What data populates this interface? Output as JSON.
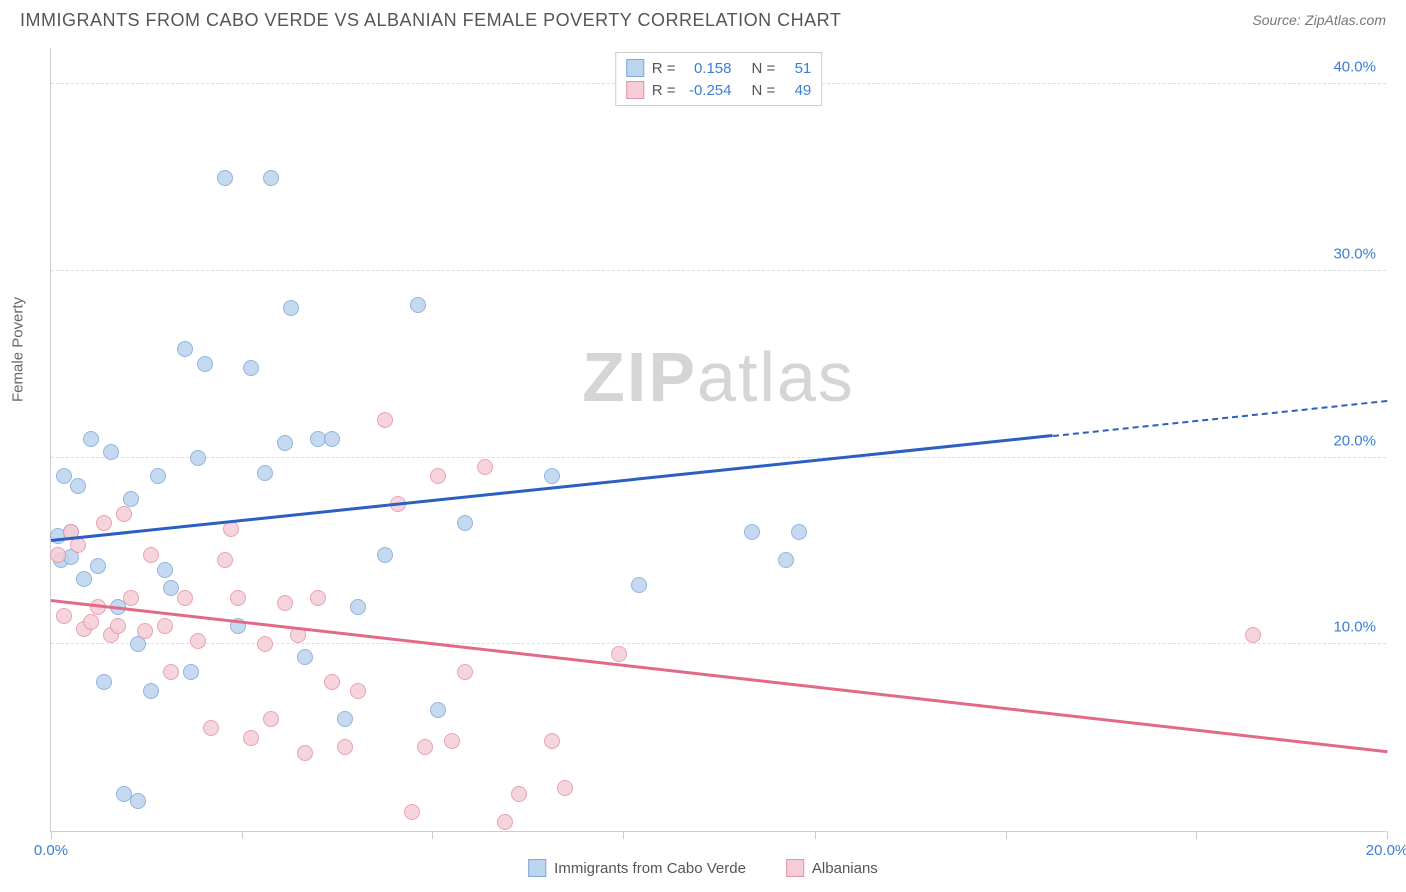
{
  "header": {
    "title": "IMMIGRANTS FROM CABO VERDE VS ALBANIAN FEMALE POVERTY CORRELATION CHART",
    "source_label": "Source:",
    "source_name": "ZipAtlas.com"
  },
  "watermark": {
    "bold": "ZIP",
    "light": "atlas"
  },
  "chart": {
    "type": "scatter",
    "xlim": [
      0,
      20
    ],
    "ylim": [
      0,
      42
    ],
    "x_ticks": [
      0,
      2.86,
      5.71,
      8.57,
      11.43,
      14.29,
      17.14,
      20
    ],
    "x_tick_labels": {
      "0": "0.0%",
      "20": "20.0%"
    },
    "y_gridlines": [
      10,
      20,
      30,
      40
    ],
    "y_tick_labels": {
      "10": "10.0%",
      "20": "20.0%",
      "30": "30.0%",
      "40": "40.0%"
    },
    "y_axis_title": "Female Poverty",
    "x_label_color": "#3b7dd8",
    "y_label_color": "#3b7dd8",
    "grid_color": "#dddddd",
    "background_color": "#ffffff",
    "marker_radius": 8,
    "series": [
      {
        "id": "cabo",
        "label": "Immigrants from Cabo Verde",
        "fill": "#bcd4ee",
        "stroke": "#7fa9d9",
        "R_label": "R =",
        "R": "0.158",
        "N_label": "N =",
        "N": "51",
        "trend": {
          "x0": 0,
          "y0": 15.5,
          "x1": 20,
          "y1": 23.0,
          "color": "#2b5fc0",
          "dash_after_x": 15
        },
        "points": [
          [
            0.1,
            15.8
          ],
          [
            0.15,
            14.5
          ],
          [
            0.2,
            19.0
          ],
          [
            0.3,
            16.0
          ],
          [
            0.3,
            14.7
          ],
          [
            0.4,
            18.5
          ],
          [
            0.5,
            13.5
          ],
          [
            0.6,
            21.0
          ],
          [
            0.7,
            14.2
          ],
          [
            0.8,
            8.0
          ],
          [
            0.9,
            20.3
          ],
          [
            1.0,
            12.0
          ],
          [
            1.1,
            2.0
          ],
          [
            1.2,
            17.8
          ],
          [
            1.3,
            10.0
          ],
          [
            1.3,
            1.6
          ],
          [
            1.5,
            7.5
          ],
          [
            1.6,
            19.0
          ],
          [
            1.7,
            14.0
          ],
          [
            1.8,
            13.0
          ],
          [
            2.0,
            25.8
          ],
          [
            2.1,
            8.5
          ],
          [
            2.2,
            20.0
          ],
          [
            2.3,
            25.0
          ],
          [
            2.6,
            35.0
          ],
          [
            2.8,
            11.0
          ],
          [
            3.0,
            24.8
          ],
          [
            3.2,
            19.2
          ],
          [
            3.3,
            35.0
          ],
          [
            3.5,
            20.8
          ],
          [
            3.6,
            28.0
          ],
          [
            3.8,
            9.3
          ],
          [
            4.0,
            21.0
          ],
          [
            4.2,
            21.0
          ],
          [
            4.4,
            6.0
          ],
          [
            4.6,
            12.0
          ],
          [
            5.0,
            14.8
          ],
          [
            5.5,
            28.2
          ],
          [
            5.8,
            6.5
          ],
          [
            6.2,
            16.5
          ],
          [
            7.5,
            19.0
          ],
          [
            8.8,
            13.2
          ],
          [
            10.5,
            16.0
          ],
          [
            11.0,
            14.5
          ],
          [
            11.2,
            16.0
          ]
        ]
      },
      {
        "id": "albanian",
        "label": "Albanians",
        "fill": "#f5cdd5",
        "stroke": "#e394a6",
        "R_label": "R =",
        "R": "-0.254",
        "N_label": "N =",
        "N": "49",
        "trend": {
          "x0": 0,
          "y0": 12.3,
          "x1": 20,
          "y1": 4.2,
          "color": "#e26a87",
          "dash_after_x": 20
        },
        "points": [
          [
            0.1,
            14.8
          ],
          [
            0.2,
            11.5
          ],
          [
            0.3,
            16.0
          ],
          [
            0.4,
            15.3
          ],
          [
            0.5,
            10.8
          ],
          [
            0.6,
            11.2
          ],
          [
            0.7,
            12.0
          ],
          [
            0.8,
            16.5
          ],
          [
            0.9,
            10.5
          ],
          [
            1.0,
            11.0
          ],
          [
            1.1,
            17.0
          ],
          [
            1.2,
            12.5
          ],
          [
            1.4,
            10.7
          ],
          [
            1.5,
            14.8
          ],
          [
            1.7,
            11.0
          ],
          [
            1.8,
            8.5
          ],
          [
            2.0,
            12.5
          ],
          [
            2.2,
            10.2
          ],
          [
            2.4,
            5.5
          ],
          [
            2.6,
            14.5
          ],
          [
            2.7,
            16.2
          ],
          [
            2.8,
            12.5
          ],
          [
            3.0,
            5.0
          ],
          [
            3.2,
            10.0
          ],
          [
            3.3,
            6.0
          ],
          [
            3.5,
            12.2
          ],
          [
            3.7,
            10.5
          ],
          [
            3.8,
            4.2
          ],
          [
            4.0,
            12.5
          ],
          [
            4.2,
            8.0
          ],
          [
            4.4,
            4.5
          ],
          [
            4.6,
            7.5
          ],
          [
            5.0,
            22.0
          ],
          [
            5.2,
            17.5
          ],
          [
            5.4,
            1.0
          ],
          [
            5.6,
            4.5
          ],
          [
            5.8,
            19.0
          ],
          [
            6.0,
            4.8
          ],
          [
            6.2,
            8.5
          ],
          [
            6.5,
            19.5
          ],
          [
            6.8,
            0.5
          ],
          [
            7.0,
            2.0
          ],
          [
            7.5,
            4.8
          ],
          [
            7.7,
            2.3
          ],
          [
            8.5,
            9.5
          ],
          [
            18.0,
            10.5
          ]
        ]
      }
    ]
  },
  "legend_top": {
    "swatch_size": 18
  }
}
